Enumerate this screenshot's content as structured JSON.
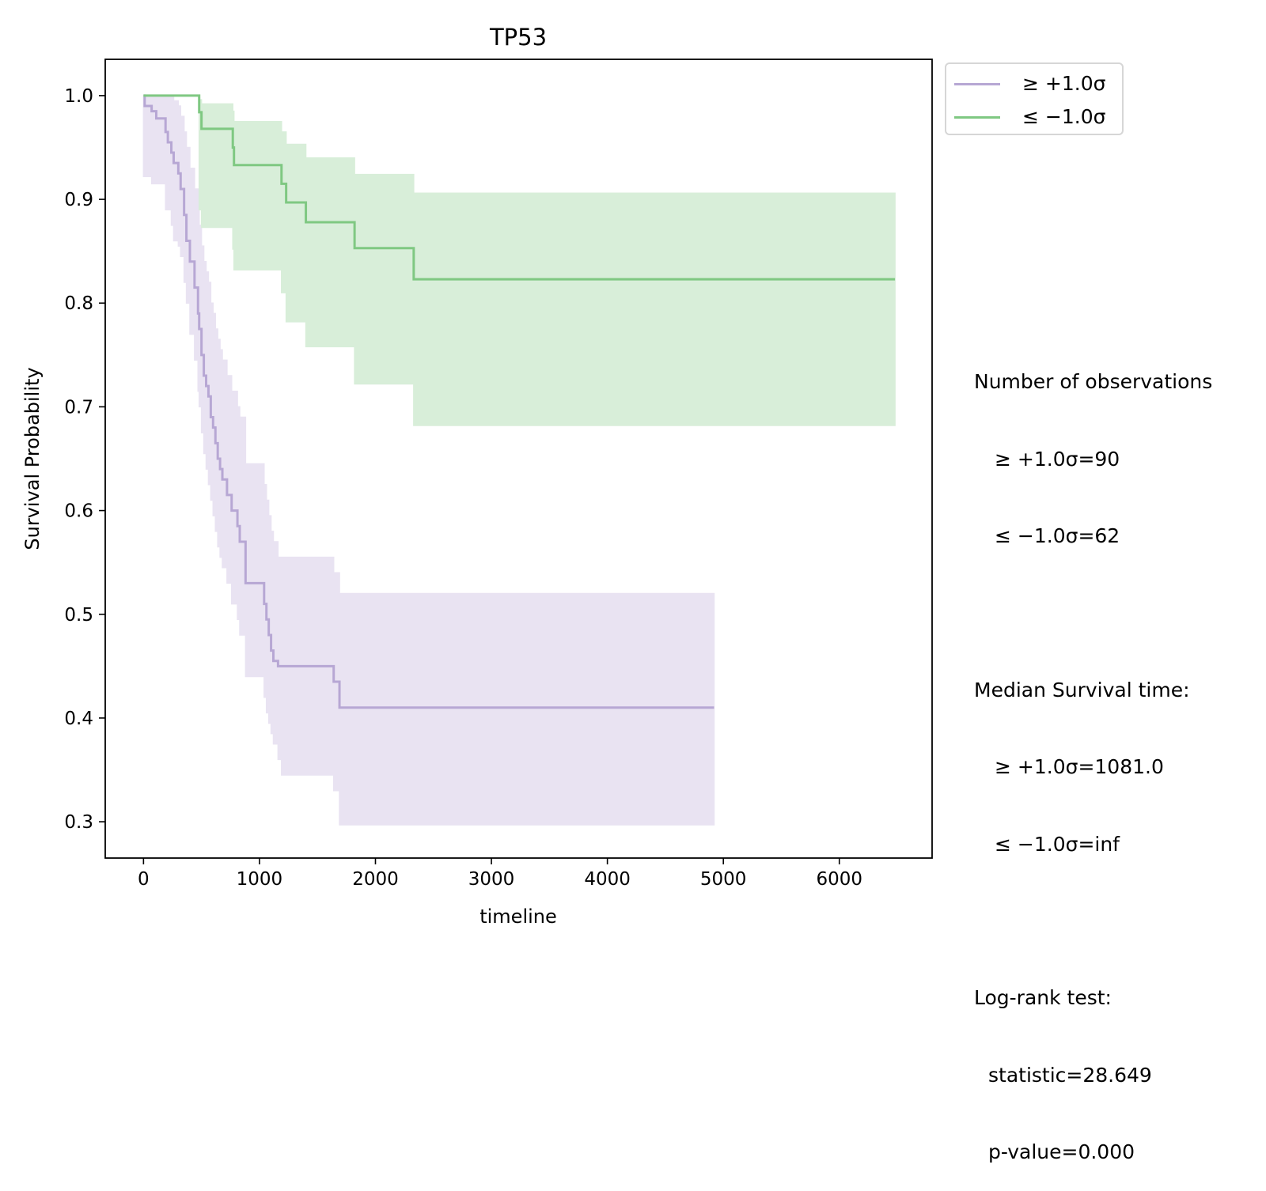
{
  "chart_data": {
    "type": "line",
    "title": "TP53",
    "xlabel": "timeline",
    "ylabel": "Survival Probability",
    "xlim": [
      -330,
      6800
    ],
    "ylim": [
      0.265,
      1.035
    ],
    "xticks": [
      0,
      1000,
      2000,
      3000,
      4000,
      5000,
      6000
    ],
    "yticks": [
      0.3,
      0.4,
      0.5,
      0.6,
      0.7,
      0.8,
      0.9,
      1.0
    ],
    "ytick_labels": [
      "0.3",
      "0.4",
      "0.5",
      "0.6",
      "0.7",
      "0.8",
      "0.9",
      "1.0"
    ],
    "grid": false,
    "legend_position": "outside-top-right",
    "series": [
      {
        "name": "≥ +1.0σ",
        "color": "#b7a7d4",
        "band_color": "#e9e3f2",
        "x": [
          0,
          10,
          70,
          110,
          190,
          210,
          240,
          260,
          300,
          320,
          350,
          370,
          400,
          440,
          470,
          480,
          500,
          520,
          540,
          560,
          580,
          600,
          620,
          640,
          660,
          680,
          720,
          760,
          810,
          830,
          880,
          1040,
          1060,
          1080,
          1100,
          1120,
          1160,
          1190,
          1640,
          1690,
          4920
        ],
        "y": [
          1.0,
          0.99,
          0.985,
          0.978,
          0.965,
          0.955,
          0.945,
          0.935,
          0.925,
          0.91,
          0.885,
          0.86,
          0.84,
          0.815,
          0.79,
          0.775,
          0.75,
          0.73,
          0.72,
          0.71,
          0.69,
          0.68,
          0.665,
          0.65,
          0.64,
          0.63,
          0.615,
          0.6,
          0.585,
          0.57,
          0.53,
          0.51,
          0.495,
          0.48,
          0.465,
          0.455,
          0.45,
          0.45,
          0.435,
          0.41,
          0.41
        ],
        "lower": [
          0.922,
          0.922,
          0.915,
          0.915,
          0.89,
          0.89,
          0.875,
          0.86,
          0.855,
          0.845,
          0.82,
          0.8,
          0.77,
          0.745,
          0.715,
          0.7,
          0.675,
          0.655,
          0.64,
          0.625,
          0.61,
          0.595,
          0.58,
          0.565,
          0.555,
          0.545,
          0.53,
          0.51,
          0.495,
          0.48,
          0.44,
          0.42,
          0.405,
          0.395,
          0.385,
          0.375,
          0.36,
          0.345,
          0.33,
          0.297,
          0.297
        ],
        "upper": [
          1.0,
          1.0,
          1.0,
          1.0,
          1.0,
          1.0,
          1.0,
          0.995,
          0.99,
          0.98,
          0.965,
          0.95,
          0.93,
          0.91,
          0.89,
          0.875,
          0.855,
          0.84,
          0.83,
          0.82,
          0.8,
          0.79,
          0.775,
          0.765,
          0.755,
          0.745,
          0.73,
          0.715,
          0.7,
          0.69,
          0.645,
          0.625,
          0.61,
          0.595,
          0.58,
          0.57,
          0.555,
          0.555,
          0.54,
          0.52,
          0.52
        ]
      },
      {
        "name": "≤ −1.0σ",
        "color": "#7fc882",
        "band_color": "#d8eed9",
        "x": [
          0,
          480,
          500,
          770,
          780,
          1190,
          1230,
          1400,
          1820,
          2330,
          6480
        ],
        "y": [
          1.0,
          0.984,
          0.968,
          0.95,
          0.933,
          0.915,
          0.897,
          0.878,
          0.853,
          0.823,
          0.823
        ],
        "lower": [
          1.0,
          0.89,
          0.873,
          0.852,
          0.832,
          0.81,
          0.782,
          0.758,
          0.722,
          0.682,
          0.682
        ],
        "upper": [
          1.0,
          0.996,
          0.992,
          0.985,
          0.975,
          0.965,
          0.953,
          0.94,
          0.924,
          0.906,
          0.906
        ]
      }
    ]
  },
  "legend": {
    "items": [
      {
        "label": "≥ +1.0σ",
        "color": "#b7a7d4"
      },
      {
        "label": "≤ −1.0σ",
        "color": "#7fc882"
      }
    ]
  },
  "stats": {
    "obs_heading": "Number of observations",
    "obs_high": "≥ +1.0σ=90",
    "obs_low": "≤ −1.0σ=62",
    "median_heading": "Median Survival time:",
    "median_high": "≥ +1.0σ=1081.0",
    "median_low": "≤ −1.0σ=inf",
    "logrank_heading": "Log-rank test:",
    "statistic": "statistic=28.649",
    "pvalue": "p-value=0.000"
  }
}
